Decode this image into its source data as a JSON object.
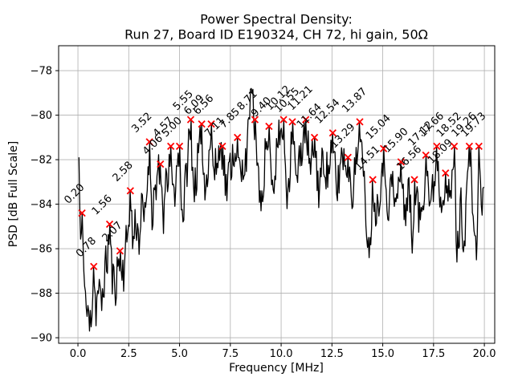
{
  "figure": {
    "background": "#ffffff"
  },
  "chart_data": {
    "type": "line",
    "title_lines": {
      "line1": "Power Spectral Density:",
      "line2": "Run 27, Board ID E190324, CH 72, hi gain, 50Ω"
    },
    "xlabel": "Frequency [MHz]",
    "ylabel": "PSD [dB Full Scale]",
    "xlim": [
      -0.95,
      20.51
    ],
    "ylim": [
      -90.25,
      -76.88
    ],
    "xticks": {
      "values": [
        0,
        2.5,
        5,
        7.5,
        10,
        12.5,
        15,
        17.5,
        20
      ],
      "labels": [
        "0.0",
        "2.5",
        "5.0",
        "7.5",
        "10.0",
        "12.5",
        "15.0",
        "17.5",
        "20.0"
      ]
    },
    "yticks": {
      "values": [
        -78,
        -80,
        -82,
        -84,
        -86,
        -88,
        -90
      ],
      "labels": [
        "−78",
        "−80",
        "−82",
        "−84",
        "−86",
        "−88",
        "−90"
      ]
    },
    "grid": true,
    "colors": {
      "line": "#000000",
      "marker": "#ff0000",
      "grid": "#b0b0b0",
      "spine": "#000000",
      "text": "#000000"
    },
    "peaks": [
      {
        "freq": 0.2,
        "psd": -84.4,
        "label": "0.20"
      },
      {
        "freq": 0.78,
        "psd": -86.8,
        "label": "0.78"
      },
      {
        "freq": 1.56,
        "psd": -84.9,
        "label": "1.56"
      },
      {
        "freq": 2.07,
        "psd": -86.1,
        "label": "2.07"
      },
      {
        "freq": 2.58,
        "psd": -83.4,
        "label": "2.58"
      },
      {
        "freq": 3.52,
        "psd": -81.2,
        "label": "3.52"
      },
      {
        "freq": 4.06,
        "psd": -82.2,
        "label": "4.06"
      },
      {
        "freq": 4.57,
        "psd": -81.4,
        "label": "4.57"
      },
      {
        "freq": 5.0,
        "psd": -81.4,
        "label": "5.00"
      },
      {
        "freq": 5.55,
        "psd": -80.2,
        "label": "5.55"
      },
      {
        "freq": 6.09,
        "psd": -80.4,
        "label": "6.09"
      },
      {
        "freq": 6.56,
        "psd": -80.4,
        "label": "6.56"
      },
      {
        "freq": 7.11,
        "psd": -81.4,
        "label": "7.11"
      },
      {
        "freq": 7.85,
        "psd": -81.0,
        "label": "7.85"
      },
      {
        "freq": 8.71,
        "psd": -80.2,
        "label": "8.71"
      },
      {
        "freq": 9.4,
        "psd": -80.5,
        "label": "9.40"
      },
      {
        "freq": 10.12,
        "psd": -80.2,
        "label": "10.12"
      },
      {
        "freq": 10.55,
        "psd": -80.3,
        "label": "10.55"
      },
      {
        "freq": 11.21,
        "psd": -80.2,
        "label": "11.21"
      },
      {
        "freq": 11.64,
        "psd": -81.0,
        "label": "11.64"
      },
      {
        "freq": 12.54,
        "psd": -80.8,
        "label": "12.54"
      },
      {
        "freq": 13.29,
        "psd": -81.9,
        "label": "13.29"
      },
      {
        "freq": 13.87,
        "psd": -80.3,
        "label": "13.87"
      },
      {
        "freq": 14.51,
        "psd": -82.9,
        "label": "14.51"
      },
      {
        "freq": 15.04,
        "psd": -81.5,
        "label": "15.04"
      },
      {
        "freq": 15.9,
        "psd": -82.1,
        "label": "15.90"
      },
      {
        "freq": 16.56,
        "psd": -82.9,
        "label": "16.56"
      },
      {
        "freq": 17.12,
        "psd": -81.8,
        "label": "17.12"
      },
      {
        "freq": 17.66,
        "psd": -81.4,
        "label": "17.66"
      },
      {
        "freq": 18.09,
        "psd": -82.6,
        "label": "18.09"
      },
      {
        "freq": 18.52,
        "psd": -81.4,
        "label": "18.52"
      },
      {
        "freq": 19.26,
        "psd": -81.4,
        "label": "19.26"
      },
      {
        "freq": 19.73,
        "psd": -81.4,
        "label": "19.73"
      }
    ],
    "spikes": [
      [
        8.54,
        -78.8
      ]
    ],
    "dips": [
      [
        0.55,
        -89.7
      ],
      [
        9.0,
        -84.3
      ],
      [
        10.3,
        -84.2
      ],
      [
        14.35,
        -86.4
      ],
      [
        16.45,
        -86.2
      ],
      [
        18.65,
        -86.6
      ],
      [
        19.6,
        -86.5
      ]
    ],
    "envelope": [
      [
        0.05,
        -81.9
      ],
      [
        0.12,
        -85.8
      ],
      [
        0.2,
        -84.4
      ],
      [
        0.32,
        -87.6
      ],
      [
        0.45,
        -89.0
      ],
      [
        0.55,
        -89.6
      ],
      [
        0.68,
        -88.6
      ],
      [
        0.78,
        -86.8
      ],
      [
        0.88,
        -88.8
      ],
      [
        1.0,
        -87.8
      ],
      [
        1.15,
        -88.6
      ],
      [
        1.3,
        -87.2
      ],
      [
        1.45,
        -86.4
      ],
      [
        1.56,
        -84.9
      ],
      [
        1.68,
        -87.3
      ],
      [
        1.85,
        -87.6
      ],
      [
        2.07,
        -86.1
      ],
      [
        2.25,
        -87.0
      ],
      [
        2.45,
        -85.2
      ],
      [
        2.58,
        -83.4
      ],
      [
        2.7,
        -85.8
      ],
      [
        2.85,
        -84.6
      ],
      [
        3.0,
        -85.6
      ],
      [
        3.15,
        -84.2
      ],
      [
        3.3,
        -84.8
      ],
      [
        3.52,
        -81.2
      ],
      [
        3.65,
        -84.4
      ],
      [
        3.8,
        -83.2
      ],
      [
        4.06,
        -82.2
      ],
      [
        4.2,
        -84.6
      ],
      [
        4.35,
        -83.2
      ],
      [
        4.57,
        -81.4
      ],
      [
        4.7,
        -83.8
      ],
      [
        4.85,
        -82.6
      ],
      [
        5.0,
        -81.4
      ],
      [
        5.15,
        -84.8
      ],
      [
        5.3,
        -83.0
      ],
      [
        5.55,
        -80.2
      ],
      [
        5.7,
        -83.4
      ],
      [
        5.9,
        -82.2
      ],
      [
        6.09,
        -80.4
      ],
      [
        6.25,
        -83.6
      ],
      [
        6.4,
        -82.0
      ],
      [
        6.56,
        -80.4
      ],
      [
        6.7,
        -82.8
      ],
      [
        6.9,
        -81.8
      ],
      [
        7.11,
        -81.4
      ],
      [
        7.3,
        -83.4
      ],
      [
        7.55,
        -82.0
      ],
      [
        7.85,
        -81.0
      ],
      [
        8.0,
        -83.0
      ],
      [
        8.2,
        -82.0
      ],
      [
        8.4,
        -81.0
      ],
      [
        8.54,
        -78.8
      ],
      [
        8.71,
        -80.2
      ],
      [
        8.85,
        -83.0
      ],
      [
        9.0,
        -84.3
      ],
      [
        9.2,
        -82.0
      ],
      [
        9.4,
        -80.5
      ],
      [
        9.6,
        -83.2
      ],
      [
        9.8,
        -81.6
      ],
      [
        10.12,
        -80.2
      ],
      [
        10.3,
        -84.2
      ],
      [
        10.55,
        -80.3
      ],
      [
        10.75,
        -83.2
      ],
      [
        10.95,
        -81.8
      ],
      [
        11.21,
        -80.2
      ],
      [
        11.45,
        -82.8
      ],
      [
        11.64,
        -81.0
      ],
      [
        11.85,
        -83.4
      ],
      [
        12.1,
        -81.8
      ],
      [
        12.3,
        -82.8
      ],
      [
        12.54,
        -80.8
      ],
      [
        12.75,
        -83.6
      ],
      [
        12.95,
        -81.8
      ],
      [
        13.29,
        -81.9
      ],
      [
        13.5,
        -83.4
      ],
      [
        13.7,
        -82.2
      ],
      [
        13.87,
        -80.3
      ],
      [
        14.05,
        -83.0
      ],
      [
        14.2,
        -84.6
      ],
      [
        14.35,
        -86.4
      ],
      [
        14.51,
        -82.9
      ],
      [
        14.7,
        -84.4
      ],
      [
        14.88,
        -83.0
      ],
      [
        15.04,
        -81.5
      ],
      [
        15.25,
        -84.0
      ],
      [
        15.45,
        -83.0
      ],
      [
        15.65,
        -84.2
      ],
      [
        15.9,
        -82.1
      ],
      [
        16.1,
        -84.4
      ],
      [
        16.3,
        -83.2
      ],
      [
        16.45,
        -86.0
      ],
      [
        16.56,
        -82.9
      ],
      [
        16.8,
        -84.8
      ],
      [
        17.0,
        -83.6
      ],
      [
        17.12,
        -81.8
      ],
      [
        17.35,
        -84.2
      ],
      [
        17.5,
        -83.2
      ],
      [
        17.66,
        -81.4
      ],
      [
        17.85,
        -84.0
      ],
      [
        18.09,
        -82.6
      ],
      [
        18.3,
        -84.2
      ],
      [
        18.52,
        -81.4
      ],
      [
        18.65,
        -86.6
      ],
      [
        18.85,
        -84.0
      ],
      [
        19.0,
        -85.8
      ],
      [
        19.26,
        -81.4
      ],
      [
        19.45,
        -84.2
      ],
      [
        19.6,
        -86.5
      ],
      [
        19.73,
        -81.4
      ],
      [
        19.85,
        -84.0
      ],
      [
        20.0,
        -83.2
      ]
    ],
    "noise": {
      "amplitude_db": 1.0,
      "df": 0.04,
      "seed": 11,
      "fstart": 0.05,
      "fend": 20.0
    }
  }
}
